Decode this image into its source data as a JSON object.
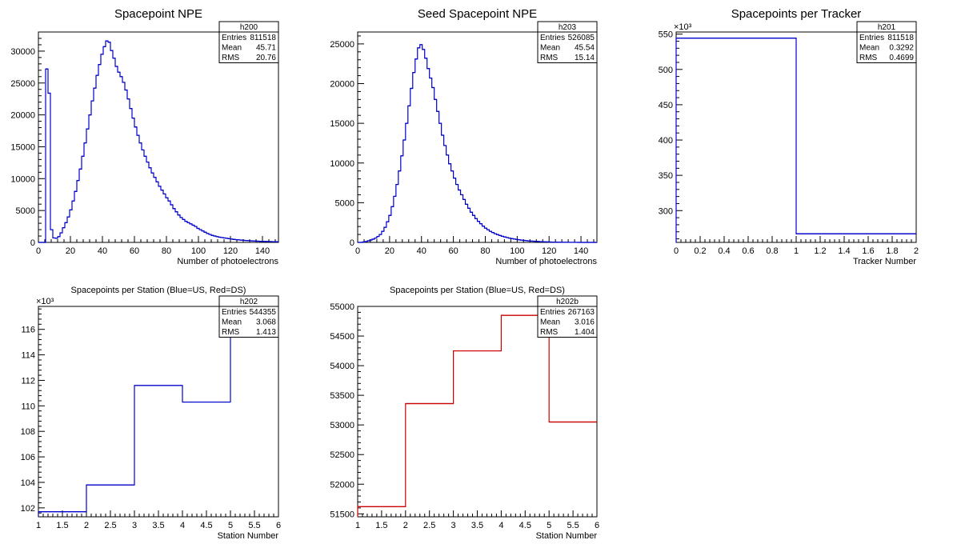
{
  "chart_data": [
    {
      "id": "h200",
      "type": "histogram",
      "title": "Spacepoint NPE",
      "xlabel": "Number of photoelectrons",
      "ylabel": "",
      "xlim": [
        0,
        150
      ],
      "ylim": [
        0,
        33000
      ],
      "exponent": "",
      "color": "#0000cc",
      "xticks": [
        0,
        20,
        40,
        60,
        80,
        100,
        120,
        140
      ],
      "yticks": [
        0,
        5000,
        10000,
        15000,
        20000,
        25000,
        30000
      ],
      "stats": {
        "name": "h200",
        "rows": [
          [
            "Entries",
            "811518"
          ],
          [
            "Mean",
            "45.71"
          ],
          [
            "RMS",
            "20.76"
          ]
        ]
      },
      "bin_edges": [
        0,
        150
      ],
      "bin_width": 1.5,
      "values": [
        0,
        0,
        0,
        27200,
        23400,
        2000,
        700,
        650,
        900,
        1500,
        2300,
        3100,
        4000,
        5100,
        6500,
        8000,
        9700,
        11500,
        13500,
        15600,
        17800,
        20000,
        22200,
        24200,
        26200,
        27900,
        29500,
        30700,
        31600,
        31400,
        30100,
        28900,
        27600,
        26700,
        26000,
        25100,
        23900,
        22500,
        21000,
        19500,
        18100,
        16800,
        15600,
        14500,
        13500,
        12600,
        11700,
        10900,
        10200,
        9500,
        8800,
        8200,
        7600,
        7000,
        6500,
        5900,
        5300,
        4800,
        4300,
        3900,
        3600,
        3300,
        3100,
        2900,
        2700,
        2500,
        2200,
        2000,
        1800,
        1600,
        1400,
        1250,
        1100,
        1000,
        900,
        820,
        760,
        700,
        640,
        580,
        520,
        470,
        430,
        400,
        360,
        330,
        300,
        270,
        250,
        230,
        210,
        190,
        170,
        160,
        150,
        140,
        130,
        120,
        110,
        100
      ]
    },
    {
      "id": "h203",
      "type": "histogram",
      "title": "Seed Spacepoint NPE",
      "xlabel": "Number of photoelectrons",
      "ylabel": "",
      "xlim": [
        0,
        150
      ],
      "ylim": [
        0,
        26500
      ],
      "exponent": "",
      "color": "#0000cc",
      "xticks": [
        0,
        20,
        40,
        60,
        80,
        100,
        120,
        140
      ],
      "yticks": [
        0,
        5000,
        10000,
        15000,
        20000,
        25000
      ],
      "stats": {
        "name": "h203",
        "rows": [
          [
            "Entries",
            "526085"
          ],
          [
            "Mean",
            "45.54"
          ],
          [
            "RMS",
            "15.14"
          ]
        ]
      },
      "bin_edges": [
        0,
        150
      ],
      "bin_width": 1.5,
      "values": [
        0,
        0,
        50,
        100,
        200,
        300,
        400,
        550,
        750,
        1000,
        1400,
        1900,
        2600,
        3400,
        4500,
        5800,
        7300,
        9000,
        10900,
        12900,
        15000,
        17200,
        19400,
        21400,
        23100,
        24500,
        24900,
        24300,
        23200,
        21900,
        20700,
        19500,
        18000,
        16500,
        15000,
        13500,
        12200,
        11000,
        9900,
        9000,
        8100,
        7300,
        6600,
        6000,
        5400,
        4800,
        4300,
        3800,
        3400,
        3000,
        2650,
        2350,
        2050,
        1800,
        1600,
        1400,
        1250,
        1100,
        980,
        870,
        770,
        690,
        610,
        540,
        480,
        420,
        370,
        330,
        290,
        250,
        220,
        190,
        170,
        150,
        130,
        110,
        95,
        80,
        70,
        60,
        50,
        40,
        30,
        25,
        20,
        15,
        12,
        10,
        8,
        6,
        5,
        4,
        3,
        3,
        2,
        2,
        1,
        1,
        1,
        0
      ]
    },
    {
      "id": "h201",
      "type": "histogram",
      "title": "Spacepoints per Tracker",
      "xlabel": "Tracker Number",
      "ylabel": "",
      "xlim": [
        0,
        2
      ],
      "ylim": [
        255,
        553
      ],
      "exponent": "×10³",
      "color": "#0000cc",
      "xticks": [
        0,
        0.2,
        0.4,
        0.6,
        0.8,
        1,
        1.2,
        1.4,
        1.6,
        1.8,
        2
      ],
      "xtick_labels": [
        "0",
        "0.2",
        "0.4",
        "0.6",
        "0.8",
        "1",
        "1.2",
        "1.4",
        "1.6",
        "1.8",
        "2"
      ],
      "yticks": [
        300,
        350,
        400,
        450,
        500,
        550
      ],
      "stats": {
        "name": "h201",
        "rows": [
          [
            "Entries",
            "811518"
          ],
          [
            "Mean",
            "0.3292"
          ],
          [
            "RMS",
            "0.4699"
          ]
        ]
      },
      "bin_edges": [
        0,
        1,
        2
      ],
      "values": [
        544.355,
        267.163
      ]
    },
    {
      "id": "h202",
      "type": "histogram",
      "title": "Spacepoints per Station (Blue=US, Red=DS)",
      "xlabel": "Station Number",
      "ylabel": "",
      "xlim": [
        1,
        6
      ],
      "ylim": [
        101.3,
        117.8
      ],
      "exponent": "×10³",
      "color": "#0000cc",
      "xticks": [
        1,
        1.5,
        2,
        2.5,
        3,
        3.5,
        4,
        4.5,
        5,
        5.5,
        6
      ],
      "xtick_labels": [
        "1",
        "1.5",
        "2",
        "2.5",
        "3",
        "3.5",
        "4",
        "4.5",
        "5",
        "5.5",
        "6"
      ],
      "yticks": [
        102,
        104,
        106,
        108,
        110,
        112,
        114,
        116
      ],
      "stats": {
        "name": "h202",
        "rows": [
          [
            "Entries",
            "544355"
          ],
          [
            "Mean",
            "3.068"
          ],
          [
            "RMS",
            "1.413"
          ]
        ]
      },
      "bin_edges": [
        1,
        2,
        3,
        4,
        5,
        6
      ],
      "values": [
        101.7,
        103.8,
        111.6,
        110.3,
        117.0
      ]
    },
    {
      "id": "h202b",
      "type": "histogram",
      "title": "Spacepoints per Station (Blue=US, Red=DS)",
      "xlabel": "Station Number",
      "ylabel": "",
      "xlim": [
        1,
        6
      ],
      "ylim": [
        51450,
        55000
      ],
      "exponent": "",
      "color": "#cc0000",
      "xticks": [
        1,
        1.5,
        2,
        2.5,
        3,
        3.5,
        4,
        4.5,
        5,
        5.5,
        6
      ],
      "xtick_labels": [
        "1",
        "1.5",
        "2",
        "2.5",
        "3",
        "3.5",
        "4",
        "4.5",
        "5",
        "5.5",
        "6"
      ],
      "yticks": [
        51500,
        52000,
        52500,
        53000,
        53500,
        54000,
        54500,
        55000
      ],
      "stats": {
        "name": "h202b",
        "rows": [
          [
            "Entries",
            "267163"
          ],
          [
            "Mean",
            "3.016"
          ],
          [
            "RMS",
            "1.404"
          ]
        ]
      },
      "bin_edges": [
        1,
        2,
        3,
        4,
        5,
        6
      ],
      "values": [
        51620,
        53360,
        54250,
        54850,
        53050
      ]
    }
  ]
}
